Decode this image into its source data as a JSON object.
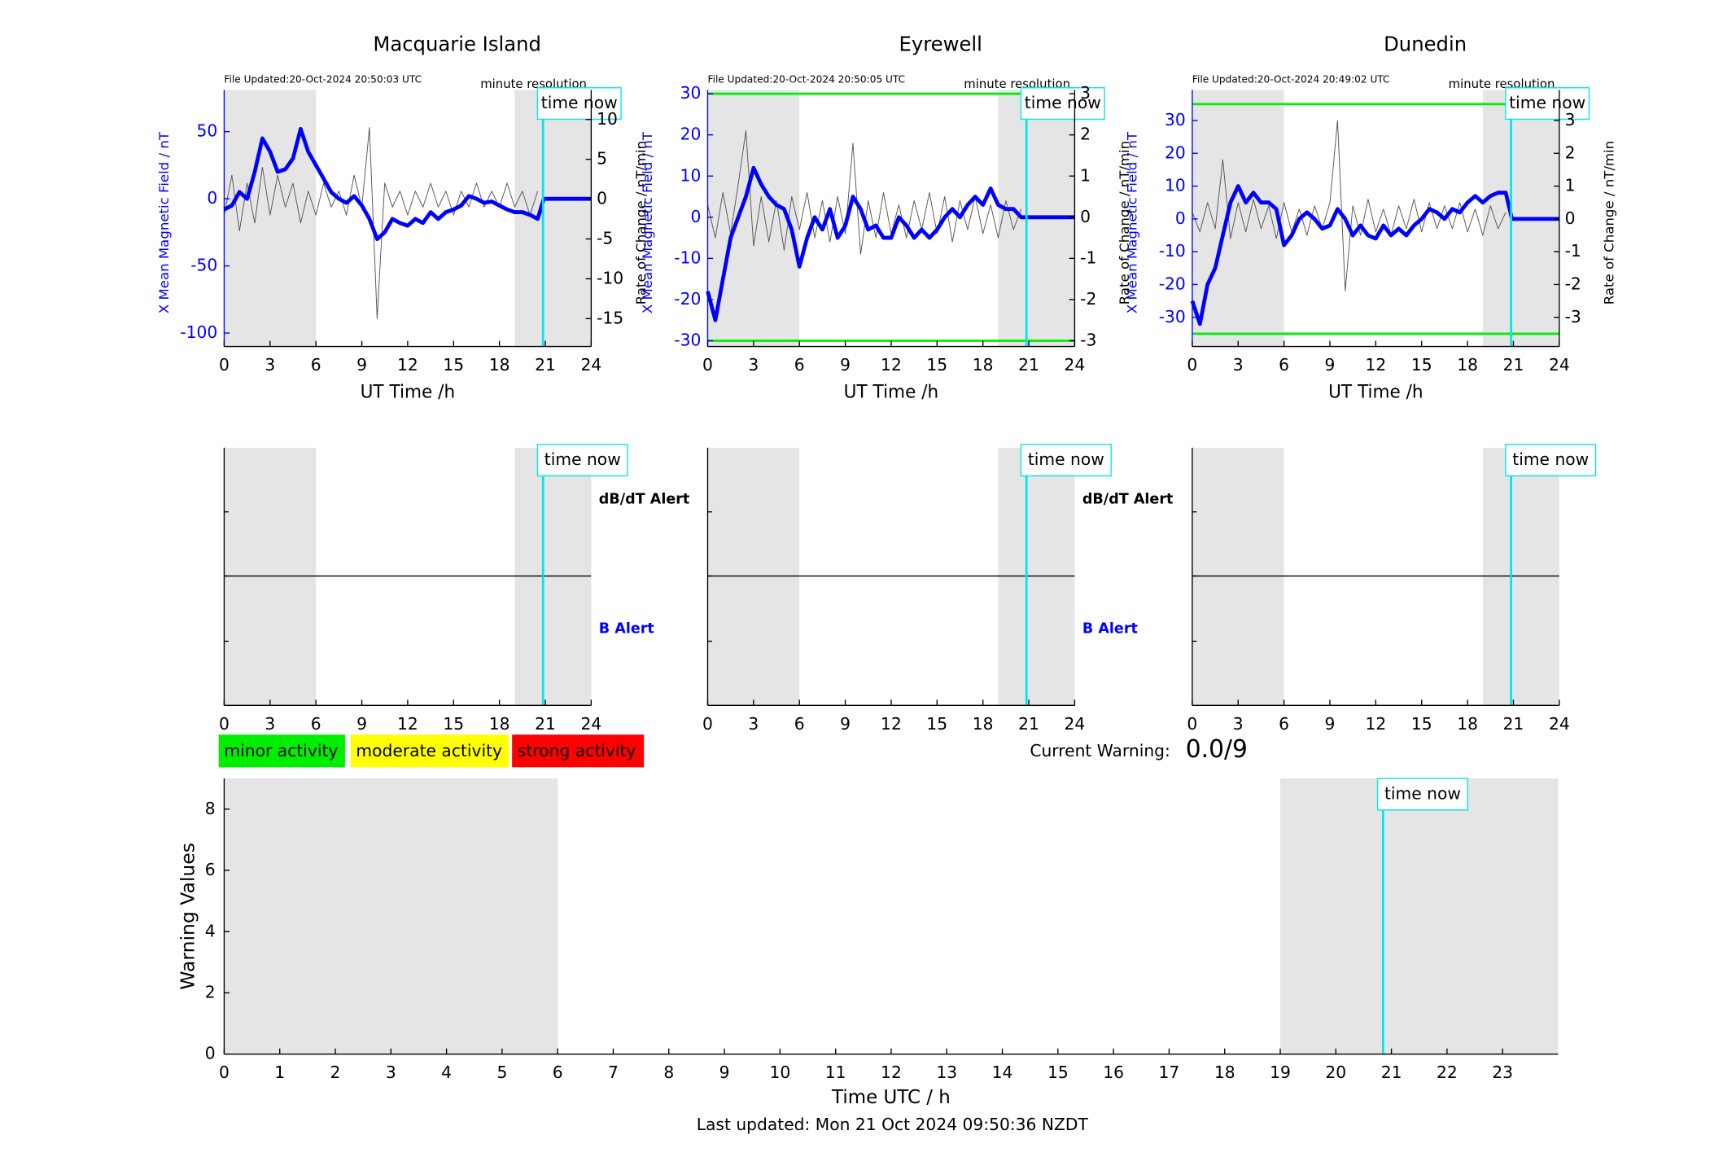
{
  "chart_data": [
    {
      "type": "line",
      "title": "Macquarie Island",
      "file_updated": "File Updated:20-Oct-2024 20:50:03 UTC",
      "resolution": "minute resolution",
      "time_now": "time now",
      "xlabel": "UT Time /h",
      "ylabel": "X Mean Magnetic Field / nT",
      "y2label": "Rate of Change / nT/min",
      "xlim": [
        0,
        24
      ],
      "xticks": [
        0,
        3,
        6,
        9,
        12,
        15,
        18,
        21,
        24
      ],
      "ylim": [
        -110,
        81
      ],
      "yticks": [
        -100,
        -50,
        0,
        50
      ],
      "y2lim": [
        -18.5,
        13.7
      ],
      "y2ticks": [
        -15,
        -10,
        -5,
        0,
        5,
        10
      ],
      "shaded": [
        [
          0,
          6
        ],
        [
          19,
          24
        ]
      ],
      "now": 20.85,
      "x": [
        0,
        0.5,
        1,
        1.5,
        2,
        2.5,
        3,
        3.5,
        4,
        4.5,
        5,
        5.5,
        6,
        6.5,
        7,
        7.5,
        8,
        8.5,
        9,
        9.5,
        10,
        10.5,
        11,
        11.5,
        12,
        12.5,
        13,
        13.5,
        14,
        14.5,
        15,
        15.5,
        16,
        16.5,
        17,
        17.5,
        18,
        18.5,
        19,
        19.5,
        20,
        20.5,
        20.9,
        24
      ],
      "series": [
        {
          "color": "#555555",
          "axis": "y2",
          "values": [
            -2,
            3,
            -4,
            2,
            -3,
            4,
            -2,
            3,
            -1,
            2,
            -3,
            1,
            -2,
            2,
            -1,
            1,
            -2,
            3,
            -1,
            9,
            -15,
            2,
            -1,
            1,
            -2,
            1,
            -1,
            2,
            -1,
            1,
            -2,
            1,
            -1,
            2,
            -1,
            1,
            -1,
            2,
            -1,
            1,
            -2,
            1,
            null,
            null
          ]
        },
        {
          "color": "#0000ff",
          "values": [
            -8,
            -5,
            5,
            0,
            20,
            45,
            35,
            20,
            22,
            30,
            52,
            35,
            25,
            15,
            5,
            0,
            -3,
            2,
            -5,
            -15,
            -30,
            -25,
            -15,
            -18,
            -20,
            -15,
            -18,
            -10,
            -15,
            -10,
            -8,
            -5,
            2,
            0,
            -3,
            -2,
            -5,
            -8,
            -10,
            -10,
            -12,
            -15,
            0,
            0
          ]
        }
      ]
    },
    {
      "type": "line",
      "title": "Eyrewell",
      "file_updated": "File Updated:20-Oct-2024 20:50:05 UTC",
      "resolution": "minute resolution",
      "time_now": "time now",
      "xlabel": "UT Time /h",
      "ylabel": "X Mean Magnetic Field / nT",
      "y2label": "Rate of Change / nT/min",
      "xlim": [
        0,
        24
      ],
      "xticks": [
        0,
        3,
        6,
        9,
        12,
        15,
        18,
        21,
        24
      ],
      "ylim": [
        -31.4,
        30.9
      ],
      "yticks": [
        -30,
        -20,
        -10,
        0,
        10,
        20,
        30
      ],
      "y2lim": [
        -3.14,
        3.09
      ],
      "y2ticks": [
        -3,
        -2,
        -1,
        0,
        1,
        2,
        3
      ],
      "thresholds": [
        30,
        -30
      ],
      "threshold_color": "#00ee00",
      "shaded": [
        [
          0,
          6
        ],
        [
          19,
          24
        ]
      ],
      "now": 20.85,
      "x": [
        0,
        0.5,
        1,
        1.5,
        2,
        2.5,
        3,
        3.5,
        4,
        4.5,
        5,
        5.5,
        6,
        6.5,
        7,
        7.5,
        8,
        8.5,
        9,
        9.5,
        10,
        10.5,
        11,
        11.5,
        12,
        12.5,
        13,
        13.5,
        14,
        14.5,
        15,
        15.5,
        16,
        16.5,
        17,
        17.5,
        18,
        18.5,
        19,
        19.5,
        20,
        20.5,
        20.9,
        24
      ],
      "series": [
        {
          "color": "#555555",
          "axis": "y2",
          "values": [
            0.3,
            -0.5,
            0.6,
            -0.4,
            0.8,
            2.1,
            -0.7,
            0.5,
            -0.6,
            0.4,
            -0.8,
            0.5,
            -0.3,
            0.6,
            -0.5,
            0.4,
            -0.6,
            0.5,
            -0.4,
            1.8,
            -0.9,
            0.4,
            -0.5,
            0.6,
            -0.4,
            0.3,
            -0.5,
            0.4,
            -0.3,
            0.6,
            -0.4,
            0.5,
            -0.6,
            0.4,
            -0.3,
            0.5,
            -0.4,
            0.3,
            -0.5,
            0.4,
            -0.3,
            0.2,
            null,
            null
          ]
        },
        {
          "color": "#0000ff",
          "values": [
            -18,
            -25,
            -15,
            -5,
            0,
            5,
            12,
            8,
            5,
            3,
            2,
            -3,
            -12,
            -5,
            0,
            -3,
            2,
            -5,
            -2,
            5,
            2,
            -3,
            -2,
            -5,
            -5,
            0,
            -2,
            -5,
            -3,
            -5,
            -3,
            0,
            2,
            0,
            3,
            5,
            3,
            7,
            3,
            2,
            2,
            0,
            0,
            0
          ]
        }
      ]
    },
    {
      "type": "line",
      "title": "Dunedin",
      "file_updated": "File Updated:20-Oct-2024 20:49:02 UTC",
      "resolution": "minute resolution",
      "time_now": "time now",
      "xlabel": "UT Time /h",
      "ylabel": "X Mean Magnetic Field / nT",
      "y2label": "Rate of Change / nT/min",
      "xlim": [
        0,
        24
      ],
      "xticks": [
        0,
        3,
        6,
        9,
        12,
        15,
        18,
        21,
        24
      ],
      "ylim": [
        -38.9,
        39.3
      ],
      "yticks": [
        -30,
        -20,
        -10,
        0,
        10,
        20,
        30
      ],
      "y2lim": [
        -3.89,
        3.93
      ],
      "y2ticks": [
        -3,
        -2,
        -1,
        0,
        1,
        2,
        3
      ],
      "thresholds": [
        35,
        -35
      ],
      "threshold_color": "#00ee00",
      "shaded": [
        [
          0,
          6
        ],
        [
          19,
          24
        ]
      ],
      "now": 20.85,
      "x": [
        0,
        0.5,
        1,
        1.5,
        2,
        2.5,
        3,
        3.5,
        4,
        4.5,
        5,
        5.5,
        6,
        6.5,
        7,
        7.5,
        8,
        8.5,
        9,
        9.5,
        10,
        10.5,
        11,
        11.5,
        12,
        12.5,
        13,
        13.5,
        14,
        14.5,
        15,
        15.5,
        16,
        16.5,
        17,
        17.5,
        18,
        18.5,
        19,
        19.5,
        20,
        20.5,
        20.9,
        24
      ],
      "series": [
        {
          "color": "#555555",
          "axis": "y2",
          "values": [
            0.2,
            -0.4,
            0.5,
            -0.3,
            1.8,
            -0.6,
            0.5,
            -0.4,
            0.6,
            -0.3,
            0.4,
            -0.6,
            0.5,
            -0.4,
            0.3,
            -0.5,
            0.4,
            -0.3,
            0.5,
            3.0,
            -2.2,
            0.4,
            -0.5,
            0.6,
            -0.4,
            0.3,
            -0.5,
            0.4,
            -0.3,
            0.6,
            -0.4,
            0.5,
            -0.3,
            0.4,
            -0.3,
            0.5,
            -0.4,
            0.3,
            -0.5,
            0.4,
            -0.3,
            0.2,
            null,
            null
          ]
        },
        {
          "color": "#0000ff",
          "values": [
            -25,
            -32,
            -20,
            -15,
            -5,
            5,
            10,
            5,
            8,
            5,
            5,
            3,
            -8,
            -5,
            0,
            2,
            0,
            -3,
            -2,
            3,
            0,
            -5,
            -2,
            -5,
            -6,
            -2,
            -5,
            -3,
            -5,
            -2,
            0,
            3,
            2,
            0,
            3,
            2,
            5,
            7,
            5,
            7,
            8,
            8,
            0,
            0
          ]
        }
      ]
    },
    {
      "type": "alert",
      "time_now": "time now",
      "xlim": [
        0,
        24
      ],
      "xticks": [
        0,
        3,
        6,
        9,
        12,
        15,
        18,
        21,
        24
      ],
      "shaded": [
        [
          0,
          6
        ],
        [
          19,
          24
        ]
      ],
      "now": 20.85,
      "labels": [
        {
          "text": "dB/dT Alert",
          "color": "#000000"
        },
        {
          "text": "B Alert",
          "color": "#0000ff"
        }
      ]
    },
    {
      "type": "alert",
      "time_now": "time now",
      "xlim": [
        0,
        24
      ],
      "xticks": [
        0,
        3,
        6,
        9,
        12,
        15,
        18,
        21,
        24
      ],
      "shaded": [
        [
          0,
          6
        ],
        [
          19,
          24
        ]
      ],
      "now": 20.85,
      "labels": [
        {
          "text": "dB/dT Alert",
          "color": "#000000"
        },
        {
          "text": "B Alert",
          "color": "#0000ff"
        }
      ]
    },
    {
      "type": "alert",
      "time_now": "time now",
      "xlim": [
        0,
        24
      ],
      "xticks": [
        0,
        3,
        6,
        9,
        12,
        15,
        18,
        21,
        24
      ],
      "shaded": [
        [
          0,
          6
        ],
        [
          19,
          24
        ]
      ],
      "now": 20.85,
      "labels": []
    },
    {
      "type": "warning",
      "time_now": "time now",
      "xlabel": "Time UTC / h",
      "ylabel": "Warning Values",
      "xlim": [
        0,
        24
      ],
      "xticks": [
        0,
        1,
        2,
        3,
        4,
        5,
        6,
        7,
        8,
        9,
        10,
        11,
        12,
        13,
        14,
        15,
        16,
        17,
        18,
        19,
        20,
        21,
        22,
        23
      ],
      "ylim": [
        0,
        9
      ],
      "yticks": [
        0,
        2,
        4,
        6,
        8
      ],
      "shaded": [
        [
          0,
          6
        ],
        [
          19,
          24
        ]
      ],
      "now": 20.85,
      "levels": [
        {
          "name": "minor activity",
          "color": "#00ee00"
        },
        {
          "name": "moderate activity",
          "color": "#ffff00"
        },
        {
          "name": "strong activity",
          "color": "#ff0000"
        }
      ],
      "current_warning_label": "Current Warning:",
      "current_warning": "0.0/9",
      "last_updated": "Last updated: Mon 21 Oct 2024 09:50:36 NZDT"
    }
  ]
}
